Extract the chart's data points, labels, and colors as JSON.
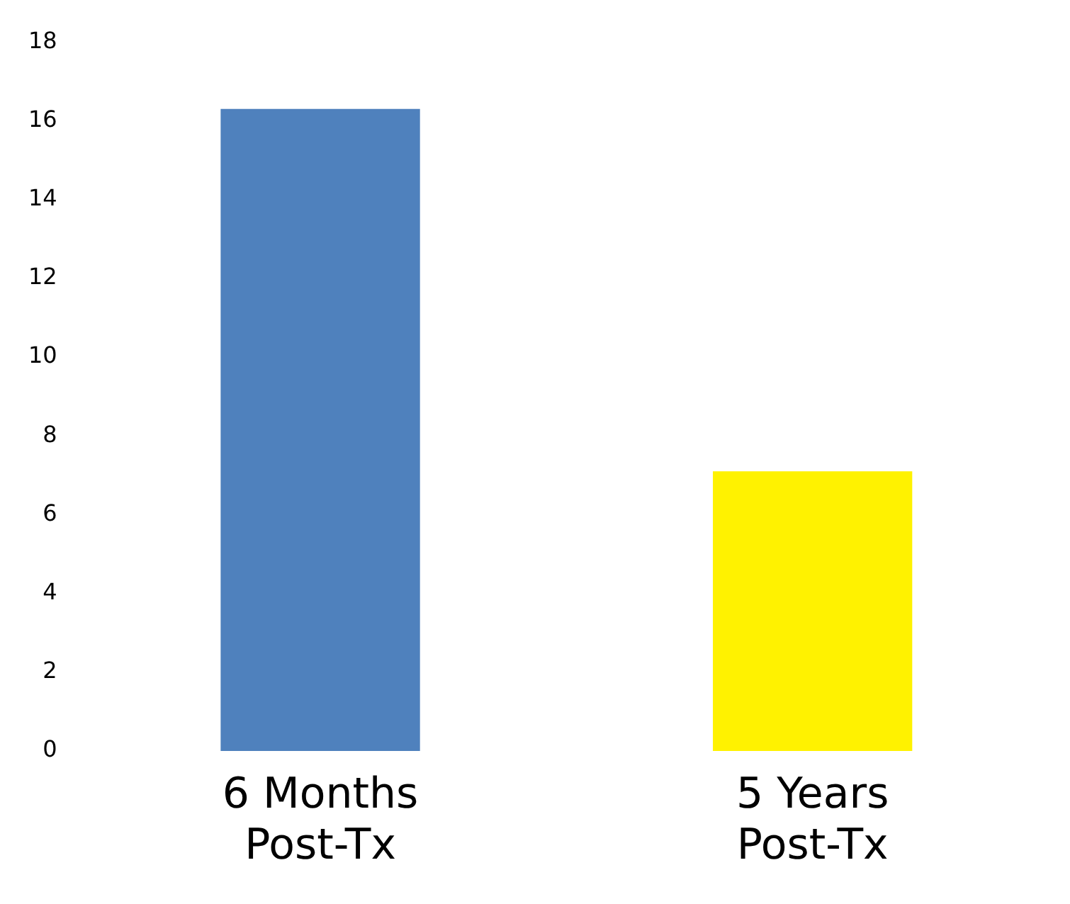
{
  "chart_data": {
    "type": "bar",
    "categories": [
      "6 Months Post-Tx",
      "5 Years Post-Tx"
    ],
    "values": [
      16.3,
      7.1
    ],
    "colors": [
      "#4f81bd",
      "#fff200"
    ],
    "ylim": [
      0,
      18
    ],
    "yticks": [
      0,
      2,
      4,
      6,
      8,
      10,
      12,
      14,
      16,
      18
    ],
    "grid": false,
    "legend": false
  }
}
